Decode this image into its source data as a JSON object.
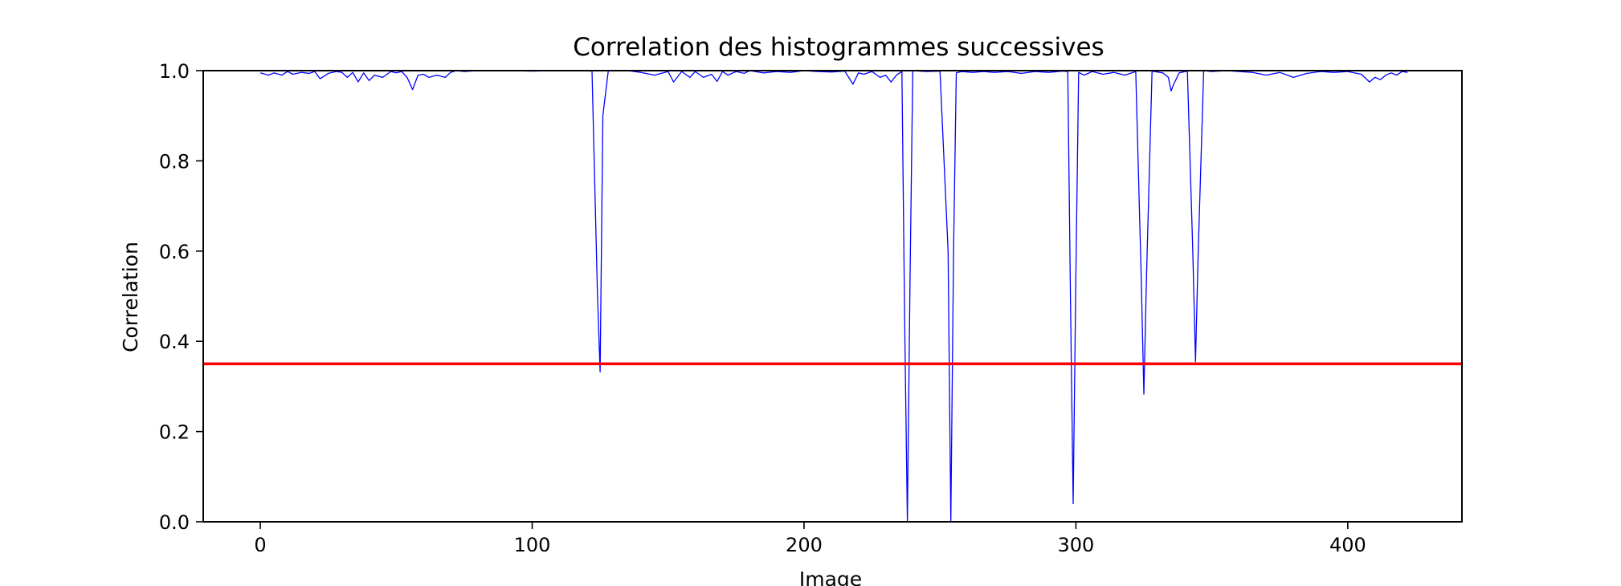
{
  "chart_data": {
    "type": "line",
    "title": "Correlation des histogrammes successives",
    "xlabel": "Image",
    "ylabel": "Correlation",
    "xlim": [
      -21,
      442
    ],
    "ylim": [
      0.0,
      1.0
    ],
    "x_ticks": [
      0,
      100,
      200,
      300,
      400
    ],
    "x_tick_labels": [
      "0",
      "100",
      "200",
      "300",
      "400"
    ],
    "y_ticks": [
      0.0,
      0.2,
      0.4,
      0.6,
      0.8,
      1.0
    ],
    "y_tick_labels": [
      "0.0",
      "0.2",
      "0.4",
      "0.6",
      "0.8",
      "1.0"
    ],
    "grid": false,
    "legend": "none",
    "series": [
      {
        "color": "#0000ff",
        "x": [
          0,
          3,
          5,
          8,
          10,
          12,
          15,
          18,
          20,
          22,
          25,
          28,
          30,
          32,
          34,
          36,
          38,
          40,
          42,
          45,
          48,
          50,
          52,
          54,
          56,
          58,
          60,
          62,
          65,
          68,
          70,
          72,
          75,
          80,
          90,
          100,
          110,
          118,
          122,
          124,
          125,
          126,
          128,
          135,
          140,
          145,
          150,
          152,
          155,
          158,
          160,
          163,
          166,
          168,
          170,
          172,
          175,
          178,
          180,
          185,
          190,
          195,
          200,
          205,
          210,
          215,
          218,
          220,
          222,
          225,
          228,
          230,
          232,
          234,
          236,
          237,
          238,
          239,
          240,
          245,
          250,
          253,
          254,
          255,
          256,
          258,
          262,
          266,
          270,
          275,
          280,
          285,
          290,
          295,
          297,
          298,
          299,
          300,
          301,
          303,
          306,
          310,
          314,
          318,
          322,
          324,
          325,
          326,
          328,
          332,
          334,
          335,
          336,
          338,
          341,
          343,
          344,
          345,
          347,
          350,
          355,
          360,
          365,
          370,
          375,
          380,
          385,
          390,
          395,
          400,
          405,
          408,
          410,
          412,
          414,
          416,
          418,
          420,
          422
        ],
        "y": [
          0.995,
          0.99,
          0.995,
          0.99,
          0.998,
          0.992,
          0.996,
          0.994,
          0.998,
          0.982,
          0.994,
          0.998,
          0.996,
          0.985,
          0.996,
          0.975,
          0.995,
          0.978,
          0.99,
          0.985,
          0.998,
          0.995,
          0.998,
          0.985,
          0.958,
          0.99,
          0.992,
          0.985,
          0.99,
          0.985,
          0.996,
          1.0,
          0.998,
          1.0,
          1.0,
          0.999,
          1.0,
          1.0,
          0.999,
          0.51,
          0.332,
          0.9,
          1.0,
          1.0,
          0.996,
          0.99,
          0.998,
          0.975,
          0.998,
          0.985,
          0.998,
          0.985,
          0.992,
          0.976,
          0.998,
          0.99,
          0.998,
          0.994,
          1.0,
          0.995,
          0.998,
          0.996,
          1.0,
          0.998,
          0.997,
          0.999,
          0.97,
          0.995,
          0.992,
          0.998,
          0.985,
          0.99,
          0.975,
          0.99,
          0.998,
          0.45,
          0.0,
          0.55,
          1.0,
          0.998,
          0.999,
          0.6,
          0.0,
          0.6,
          0.995,
          0.998,
          0.996,
          0.998,
          0.996,
          0.998,
          0.994,
          0.998,
          0.996,
          0.999,
          0.998,
          0.5,
          0.04,
          0.55,
          0.996,
          0.99,
          0.998,
          0.992,
          0.996,
          0.99,
          0.998,
          0.55,
          0.283,
          0.55,
          0.999,
          0.995,
          0.985,
          0.955,
          0.97,
          0.995,
          0.999,
          0.6,
          0.355,
          0.6,
          1.0,
          0.998,
          1.0,
          0.998,
          0.996,
          0.99,
          0.996,
          0.985,
          0.994,
          0.998,
          0.996,
          0.998,
          0.992,
          0.975,
          0.985,
          0.98,
          0.99,
          0.995,
          0.99,
          0.998,
          0.996
        ]
      },
      {
        "color": "#ff0000",
        "x": [
          -21,
          442
        ],
        "y": [
          0.35,
          0.35
        ]
      }
    ]
  }
}
